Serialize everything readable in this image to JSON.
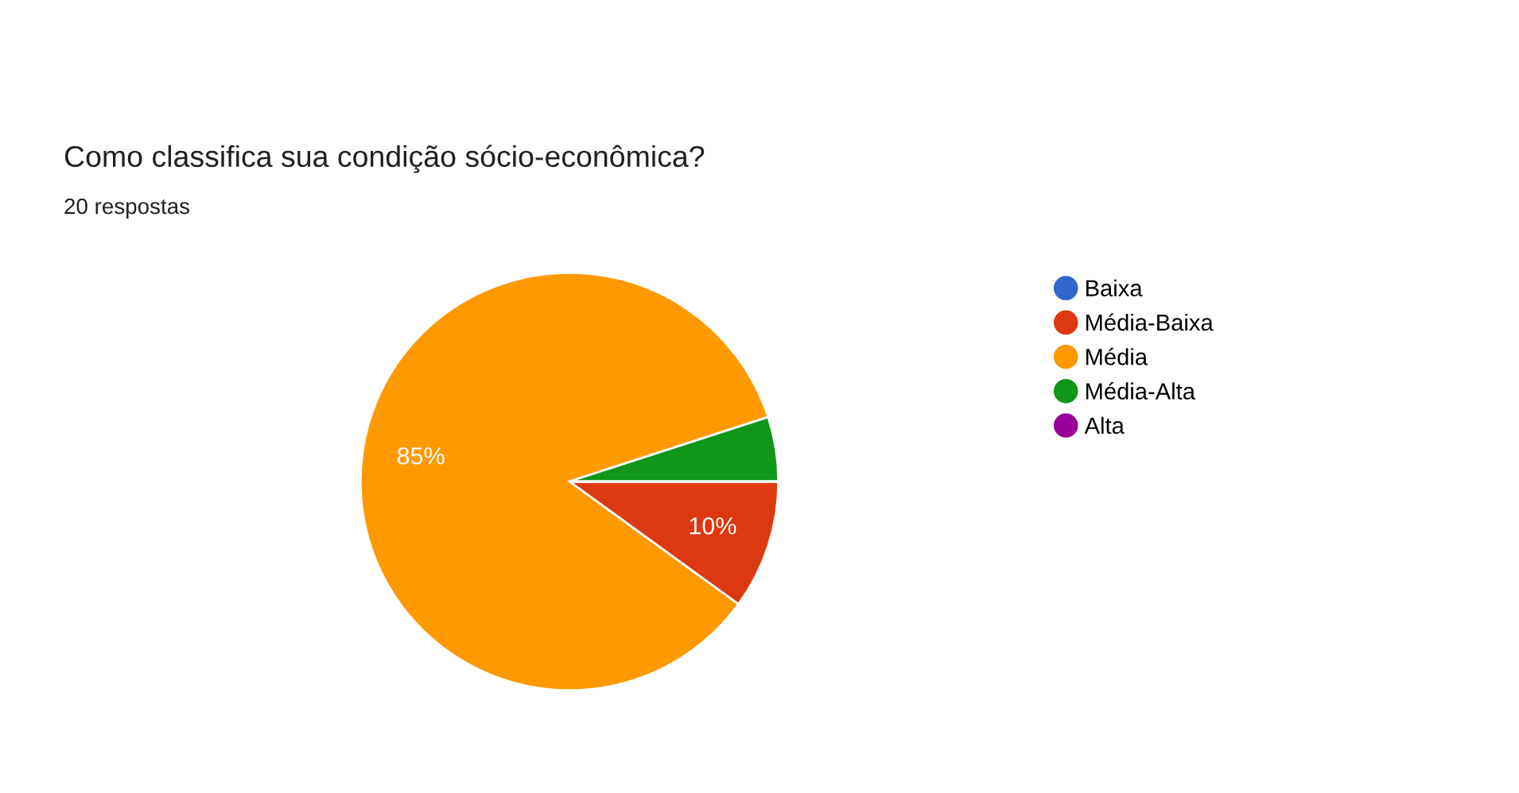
{
  "chart_data": {
    "type": "pie",
    "title": "Como classifica sua condição sócio-econômica?",
    "subtitle": "20 respostas",
    "categories": [
      "Baixa",
      "Média-Baixa",
      "Média",
      "Média-Alta",
      "Alta"
    ],
    "values": [
      0,
      10,
      85,
      5,
      0
    ],
    "colors": [
      "#3366cc",
      "#dc3912",
      "#ff9900",
      "#109618",
      "#990099"
    ],
    "value_labels": [
      null,
      "10%",
      "85%",
      null,
      null
    ],
    "legend": "right"
  }
}
